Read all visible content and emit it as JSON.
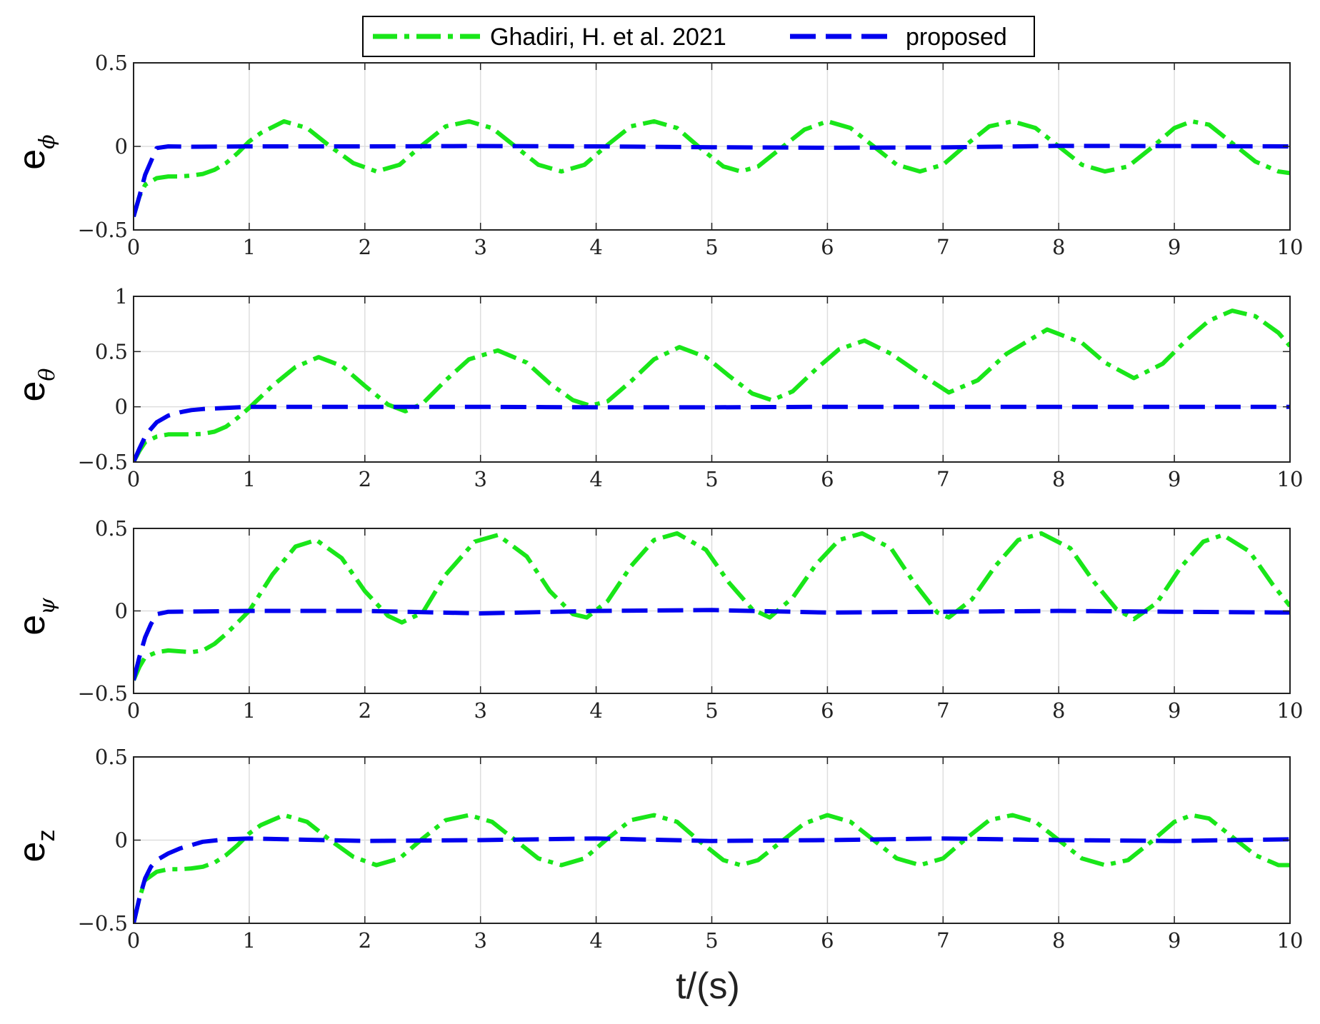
{
  "legend": {
    "items": [
      {
        "label": "Ghadiri, H. et al. 2021",
        "color": "#19e619",
        "dash": "dashdot"
      },
      {
        "label": "proposed",
        "color": "#0000ee",
        "dash": "dash"
      }
    ]
  },
  "xlabel": "t/(s)",
  "chart_data": [
    {
      "type": "line",
      "ylabel": "e",
      "ylabel_sub": "ϕ",
      "ylabel_sub_style": "italic",
      "xlim": [
        0,
        10
      ],
      "ylim": [
        -0.5,
        0.5
      ],
      "xticks": [
        "0",
        "1",
        "2",
        "3",
        "4",
        "5",
        "6",
        "7",
        "8",
        "9",
        "10"
      ],
      "yticks": [
        "0.5",
        "0",
        "−0.5"
      ],
      "ytick_values": [
        0.5,
        0,
        -0.5
      ],
      "grid": true,
      "series": [
        {
          "name": "Ghadiri, H. et al. 2021",
          "x": [
            0,
            0.05,
            0.1,
            0.2,
            0.3,
            0.4,
            0.5,
            0.6,
            0.7,
            0.8,
            0.9,
            1.0,
            1.1,
            1.3,
            1.5,
            1.7,
            1.9,
            2.1,
            2.3,
            2.5,
            2.7,
            2.9,
            3.1,
            3.3,
            3.5,
            3.7,
            3.9,
            4.1,
            4.3,
            4.5,
            4.7,
            4.9,
            5.1,
            5.25,
            5.4,
            5.6,
            5.8,
            6.0,
            6.2,
            6.4,
            6.6,
            6.8,
            7.0,
            7.2,
            7.4,
            7.6,
            7.8,
            8.0,
            8.2,
            8.4,
            8.6,
            8.8,
            9.0,
            9.15,
            9.3,
            9.5,
            9.7,
            9.9,
            10.0
          ],
          "y": [
            -0.42,
            -0.3,
            -0.23,
            -0.19,
            -0.18,
            -0.18,
            -0.175,
            -0.165,
            -0.14,
            -0.1,
            -0.04,
            0.03,
            0.08,
            0.15,
            0.11,
            0.0,
            -0.1,
            -0.15,
            -0.11,
            0.01,
            0.12,
            0.15,
            0.11,
            0.0,
            -0.11,
            -0.15,
            -0.11,
            0.01,
            0.12,
            0.15,
            0.11,
            -0.01,
            -0.12,
            -0.15,
            -0.12,
            -0.01,
            0.1,
            0.15,
            0.11,
            0.0,
            -0.11,
            -0.15,
            -0.11,
            0.01,
            0.12,
            0.15,
            0.11,
            0.0,
            -0.11,
            -0.15,
            -0.12,
            -0.01,
            0.11,
            0.15,
            0.13,
            0.02,
            -0.09,
            -0.15,
            -0.16
          ]
        },
        {
          "name": "proposed",
          "x": [
            0,
            0.05,
            0.1,
            0.15,
            0.2,
            0.3,
            0.5,
            1,
            2,
            3,
            4,
            5,
            6,
            7,
            8,
            9,
            10
          ],
          "y": [
            -0.42,
            -0.3,
            -0.17,
            -0.09,
            -0.01,
            0.0,
            -0.002,
            0.0,
            0.0,
            0.002,
            0.0,
            -0.005,
            -0.008,
            -0.006,
            0.003,
            0.002,
            0.0
          ]
        }
      ]
    },
    {
      "type": "line",
      "ylabel": "e",
      "ylabel_sub": "θ",
      "ylabel_sub_style": "italic",
      "xlim": [
        0,
        10
      ],
      "ylim": [
        -0.5,
        1.0
      ],
      "xticks": [
        "0",
        "1",
        "2",
        "3",
        "4",
        "5",
        "6",
        "7",
        "8",
        "9",
        "10"
      ],
      "yticks": [
        "1",
        "0.5",
        "0",
        "−0.5"
      ],
      "ytick_values": [
        1,
        0.5,
        0,
        -0.5
      ],
      "grid": true,
      "series": [
        {
          "name": "Ghadiri, H. et al. 2021",
          "x": [
            0,
            0.05,
            0.1,
            0.2,
            0.3,
            0.4,
            0.5,
            0.6,
            0.7,
            0.8,
            0.9,
            1.0,
            1.2,
            1.4,
            1.6,
            1.8,
            2.0,
            2.2,
            2.35,
            2.5,
            2.7,
            2.9,
            3.15,
            3.4,
            3.6,
            3.8,
            3.95,
            4.1,
            4.3,
            4.5,
            4.72,
            4.95,
            5.15,
            5.35,
            5.52,
            5.7,
            5.9,
            6.1,
            6.32,
            6.55,
            6.8,
            7.05,
            7.3,
            7.55,
            7.9,
            8.2,
            8.4,
            8.65,
            8.9,
            9.1,
            9.3,
            9.5,
            9.7,
            9.9,
            10.0
          ],
          "y": [
            -0.5,
            -0.4,
            -0.32,
            -0.27,
            -0.25,
            -0.25,
            -0.25,
            -0.245,
            -0.225,
            -0.18,
            -0.1,
            -0.01,
            0.19,
            0.36,
            0.45,
            0.37,
            0.19,
            0.02,
            -0.04,
            0.03,
            0.24,
            0.43,
            0.51,
            0.4,
            0.21,
            0.06,
            0.01,
            0.05,
            0.23,
            0.43,
            0.54,
            0.45,
            0.28,
            0.12,
            0.06,
            0.14,
            0.34,
            0.52,
            0.6,
            0.48,
            0.3,
            0.13,
            0.24,
            0.48,
            0.7,
            0.58,
            0.4,
            0.26,
            0.39,
            0.6,
            0.78,
            0.87,
            0.82,
            0.67,
            0.55
          ]
        },
        {
          "name": "proposed",
          "x": [
            0,
            0.05,
            0.1,
            0.15,
            0.2,
            0.3,
            0.4,
            0.5,
            0.6,
            0.8,
            1,
            2,
            3,
            4,
            5,
            6,
            7,
            8,
            9,
            10
          ],
          "y": [
            -0.5,
            -0.38,
            -0.27,
            -0.2,
            -0.14,
            -0.08,
            -0.05,
            -0.03,
            -0.02,
            -0.01,
            0.0,
            0.0,
            0.0,
            -0.005,
            -0.005,
            0.0,
            0.0,
            0.0,
            0.0,
            0.0
          ]
        }
      ]
    },
    {
      "type": "line",
      "ylabel": "e",
      "ylabel_sub": "ψ",
      "ylabel_sub_style": "italic",
      "xlim": [
        0,
        10
      ],
      "ylim": [
        -0.5,
        0.5
      ],
      "xticks": [
        "0",
        "1",
        "2",
        "3",
        "4",
        "5",
        "6",
        "7",
        "8",
        "9",
        "10"
      ],
      "yticks": [
        "0.5",
        "0",
        "−0.5"
      ],
      "ytick_values": [
        0.5,
        0,
        -0.5
      ],
      "grid": true,
      "series": [
        {
          "name": "Ghadiri, H. et al. 2021",
          "x": [
            0,
            0.05,
            0.1,
            0.2,
            0.3,
            0.4,
            0.5,
            0.6,
            0.7,
            0.8,
            0.9,
            1.0,
            1.2,
            1.4,
            1.58,
            1.8,
            2.0,
            2.2,
            2.32,
            2.5,
            2.7,
            2.95,
            3.15,
            3.4,
            3.6,
            3.8,
            3.92,
            4.1,
            4.3,
            4.5,
            4.7,
            4.95,
            5.15,
            5.35,
            5.5,
            5.7,
            5.9,
            6.1,
            6.3,
            6.55,
            6.75,
            6.95,
            7.05,
            7.25,
            7.45,
            7.65,
            7.85,
            8.1,
            8.3,
            8.5,
            8.65,
            8.85,
            9.05,
            9.25,
            9.42,
            9.65,
            9.85,
            10.0
          ],
          "y": [
            -0.42,
            -0.34,
            -0.28,
            -0.25,
            -0.24,
            -0.245,
            -0.25,
            -0.24,
            -0.2,
            -0.14,
            -0.07,
            0.0,
            0.22,
            0.39,
            0.43,
            0.32,
            0.12,
            -0.03,
            -0.07,
            -0.01,
            0.22,
            0.42,
            0.46,
            0.33,
            0.12,
            -0.02,
            -0.04,
            0.06,
            0.27,
            0.43,
            0.47,
            0.37,
            0.17,
            0.01,
            -0.04,
            0.08,
            0.28,
            0.43,
            0.47,
            0.38,
            0.17,
            -0.01,
            -0.04,
            0.07,
            0.27,
            0.43,
            0.47,
            0.38,
            0.18,
            0.01,
            -0.05,
            0.05,
            0.26,
            0.42,
            0.46,
            0.36,
            0.16,
            0.03
          ]
        },
        {
          "name": "proposed",
          "x": [
            0,
            0.05,
            0.1,
            0.15,
            0.2,
            0.3,
            0.6,
            1,
            2,
            3,
            4,
            5,
            6,
            7,
            8,
            9,
            10
          ],
          "y": [
            -0.42,
            -0.28,
            -0.16,
            -0.08,
            -0.02,
            -0.005,
            -0.003,
            0.0,
            0.0,
            -0.015,
            0.0,
            0.005,
            -0.01,
            -0.005,
            0.0,
            -0.005,
            -0.01
          ]
        }
      ]
    },
    {
      "type": "line",
      "ylabel": "e",
      "ylabel_sub": "z",
      "ylabel_sub_style": "plain",
      "xlim": [
        0,
        10
      ],
      "ylim": [
        -0.5,
        0.5
      ],
      "xticks": [
        "0",
        "1",
        "2",
        "3",
        "4",
        "5",
        "6",
        "7",
        "8",
        "9",
        "10"
      ],
      "yticks": [
        "0.5",
        "0",
        "−0.5"
      ],
      "ytick_values": [
        0.5,
        0,
        -0.5
      ],
      "grid": true,
      "series": [
        {
          "name": "Ghadiri, H. et al. 2021",
          "x": [
            0,
            0.05,
            0.1,
            0.2,
            0.3,
            0.4,
            0.5,
            0.6,
            0.7,
            0.8,
            0.9,
            1.0,
            1.1,
            1.3,
            1.5,
            1.7,
            1.9,
            2.1,
            2.3,
            2.5,
            2.7,
            2.9,
            3.1,
            3.3,
            3.5,
            3.7,
            3.9,
            4.1,
            4.3,
            4.5,
            4.7,
            4.9,
            5.1,
            5.25,
            5.4,
            5.6,
            5.8,
            6.0,
            6.2,
            6.4,
            6.6,
            6.8,
            7.0,
            7.2,
            7.4,
            7.6,
            7.8,
            8.0,
            8.2,
            8.4,
            8.6,
            8.8,
            9.0,
            9.15,
            9.3,
            9.5,
            9.7,
            9.9,
            10.0
          ],
          "y": [
            -0.5,
            -0.35,
            -0.24,
            -0.19,
            -0.175,
            -0.175,
            -0.17,
            -0.16,
            -0.135,
            -0.09,
            -0.03,
            0.04,
            0.09,
            0.15,
            0.11,
            0.0,
            -0.1,
            -0.15,
            -0.11,
            0.01,
            0.12,
            0.15,
            0.11,
            0.0,
            -0.11,
            -0.15,
            -0.11,
            0.01,
            0.12,
            0.15,
            0.11,
            -0.01,
            -0.12,
            -0.15,
            -0.12,
            -0.01,
            0.1,
            0.15,
            0.11,
            0.0,
            -0.11,
            -0.15,
            -0.11,
            0.01,
            0.12,
            0.15,
            0.11,
            0.0,
            -0.11,
            -0.15,
            -0.12,
            -0.01,
            0.11,
            0.15,
            0.13,
            0.02,
            -0.09,
            -0.15,
            -0.15
          ]
        },
        {
          "name": "proposed",
          "x": [
            0,
            0.05,
            0.1,
            0.15,
            0.2,
            0.3,
            0.4,
            0.5,
            0.6,
            0.8,
            1,
            2,
            3,
            4,
            5,
            6,
            7,
            8,
            9,
            10
          ],
          "y": [
            -0.5,
            -0.35,
            -0.23,
            -0.16,
            -0.12,
            -0.08,
            -0.05,
            -0.03,
            -0.01,
            0.005,
            0.01,
            -0.005,
            0.0,
            0.01,
            -0.005,
            0.0,
            0.01,
            0.0,
            -0.005,
            0.005
          ]
        }
      ]
    }
  ]
}
